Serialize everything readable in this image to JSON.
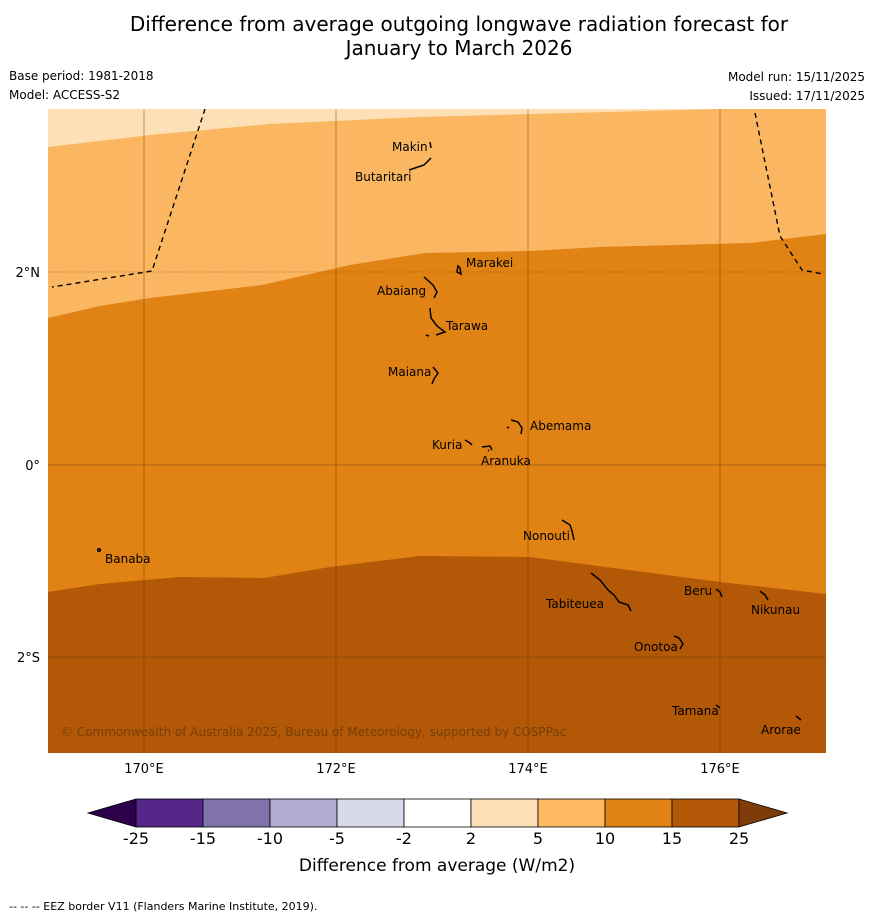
{
  "header": {
    "title_line1": "Difference from average outgoing longwave radiation forecast for",
    "title_line2": "January to March 2026",
    "base_period": "Base period: 1981-2018",
    "model": "Model: ACCESS-S2",
    "model_run": "Model run: 15/11/2025",
    "issued": "Issued: 17/11/2025"
  },
  "map": {
    "lat_ticks": [
      "2°N",
      "0°",
      "2°S"
    ],
    "lon_ticks": [
      "170°E",
      "172°E",
      "174°E",
      "176°E"
    ],
    "places": [
      "Makin",
      "Butaritari",
      "Marakei",
      "Abaiang",
      "Tarawa",
      "Maiana",
      "Abemama",
      "Kuria",
      "Aranuka",
      "Nonouti",
      "Banaba",
      "Tabiteuea",
      "Beru",
      "Nikunau",
      "Onotoa",
      "Tamana",
      "Arorae"
    ],
    "copyright": "© Commonwealth of Australia 2025, Bureau of Meteorology, supported by COSPPac",
    "fill_colors": {
      "2_to_5": "#fde0b5",
      "5_to_10": "#fab660",
      "10_to_15": "#e08214",
      "15_to_25": "#b35806"
    }
  },
  "colorbar": {
    "boundaries": [
      "-25",
      "-15",
      "-10",
      "-5",
      "-2",
      "2",
      "5",
      "10",
      "15",
      "25"
    ],
    "colors": [
      "#542788",
      "#8073ac",
      "#b2abd2",
      "#d8daeb",
      "#ffffff",
      "#fee0b6",
      "#fdb863",
      "#e08214",
      "#b35806"
    ],
    "under_color": "#2d004b",
    "over_color": "#7f3b08",
    "title": "Difference from average (W/m2)"
  },
  "footer": {
    "eez_note": "--  --  -- EEZ border V11 (Flanders Marine Institute, 2019)."
  }
}
